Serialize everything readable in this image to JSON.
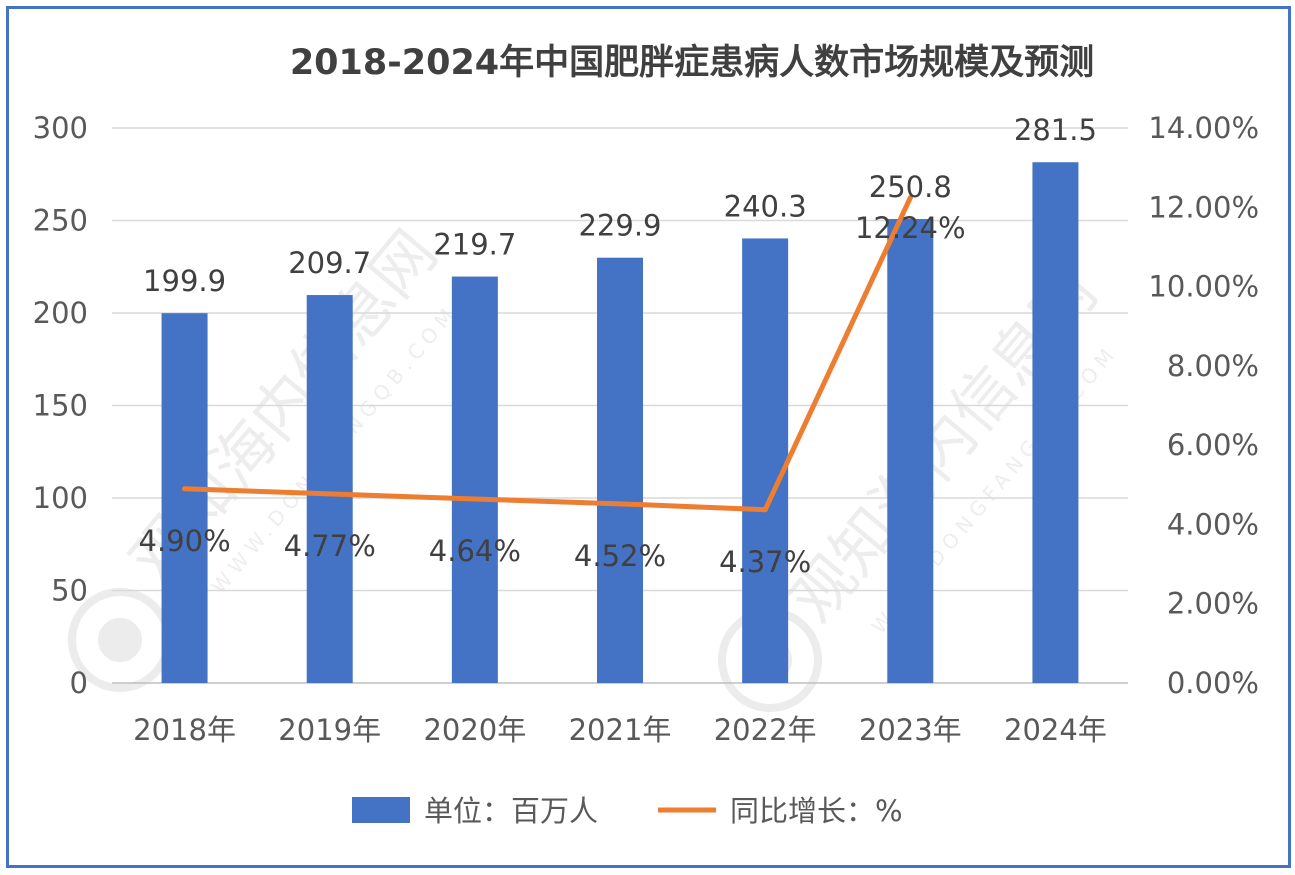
{
  "chart_data": {
    "type": "bar",
    "title": "2018-2024年中国肥胖症患病人数市场规模及预测",
    "categories": [
      "2018年",
      "2019年",
      "2020年",
      "2021年",
      "2022年",
      "2023年",
      "2024年"
    ],
    "series": [
      {
        "name": "单位：百万人",
        "type": "bar",
        "axis": "left",
        "color": "#4472C4",
        "values": [
          199.9,
          209.7,
          219.7,
          229.9,
          240.3,
          250.8,
          281.5
        ],
        "labels": [
          "199.9",
          "209.7",
          "219.7",
          "229.9",
          "240.3",
          "250.8",
          "281.5"
        ]
      },
      {
        "name": "同比增长：%",
        "type": "line",
        "axis": "right",
        "color": "#ED7D31",
        "values": [
          4.9,
          4.77,
          4.64,
          4.52,
          4.37,
          12.24,
          null
        ],
        "labels": [
          "4.90%",
          "4.77%",
          "4.64%",
          "4.52%",
          "4.37%",
          "12.24%",
          null
        ]
      }
    ],
    "y_left": {
      "ylim": [
        0,
        300
      ],
      "ticks": [
        "0",
        "50",
        "100",
        "150",
        "200",
        "250",
        "300"
      ]
    },
    "y_right": {
      "ylim": [
        0,
        14
      ],
      "ticks": [
        "0.00%",
        "2.00%",
        "4.00%",
        "6.00%",
        "8.00%",
        "10.00%",
        "12.00%",
        "14.00%"
      ]
    },
    "grid": true,
    "legend": "bottom"
  },
  "watermark": {
    "text": "观知海内信息网",
    "url": "WWW.DONGFANGQB.COM"
  }
}
